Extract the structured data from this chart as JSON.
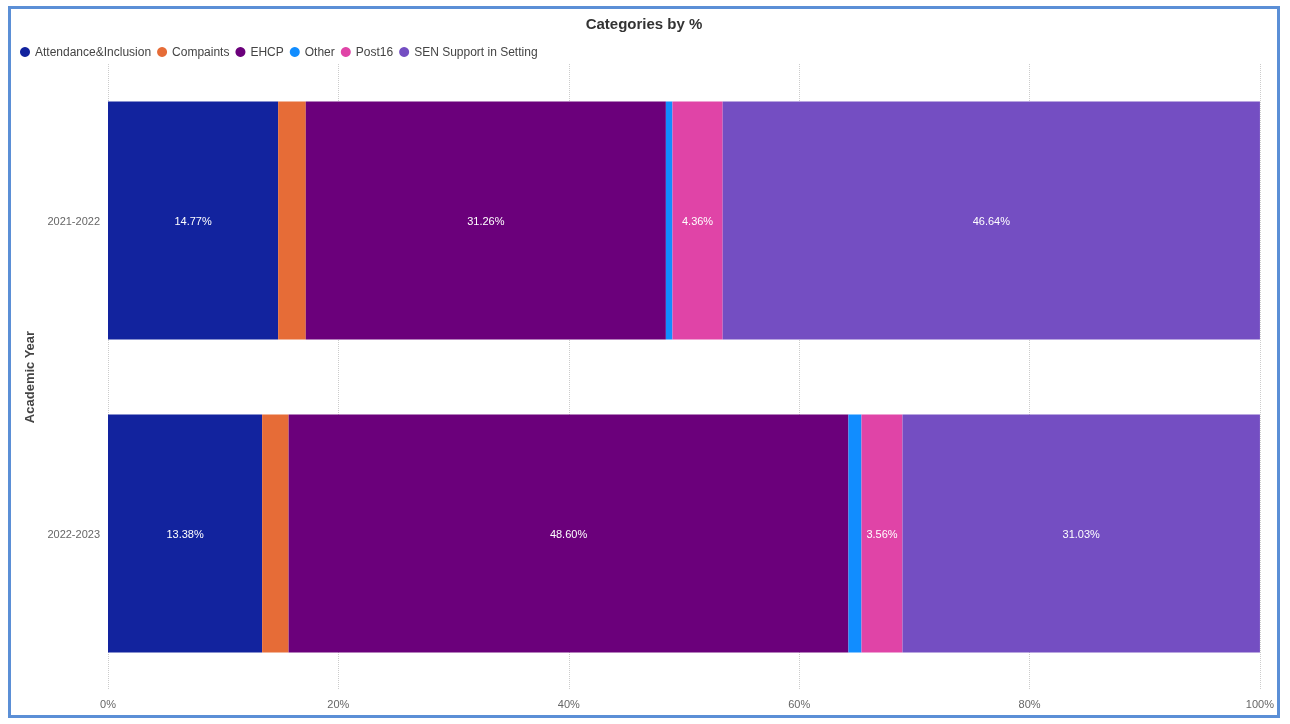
{
  "chart_data": {
    "type": "bar",
    "title": "Categories by %",
    "ylabel": "Academic Year",
    "orientation": "horizontal",
    "stacked": true,
    "categories": [
      "2021-2022",
      "2022-2023"
    ],
    "series": [
      {
        "name": "Attendance&Inclusion",
        "color": "#12239e",
        "values": [
          14.77,
          13.38
        ],
        "value_labels": [
          "14.77%",
          "13.38%"
        ]
      },
      {
        "name": "Compaints",
        "color": "#e66c37",
        "values": [
          2.4,
          2.3
        ],
        "value_labels": [
          null,
          null
        ]
      },
      {
        "name": "EHCP",
        "color": "#6b007b",
        "values": [
          31.26,
          48.6
        ],
        "value_labels": [
          "31.26%",
          "48.60%"
        ]
      },
      {
        "name": "Other",
        "color": "#118dff",
        "values": [
          0.57,
          1.13
        ],
        "value_labels": [
          null,
          null
        ]
      },
      {
        "name": "Post16",
        "color": "#e044a7",
        "values": [
          4.36,
          3.56
        ],
        "value_labels": [
          "4.36%",
          "3.56%"
        ]
      },
      {
        "name": "SEN Support in Setting",
        "color": "#744ec2",
        "values": [
          46.64,
          31.03
        ],
        "value_labels": [
          "46.64%",
          "31.03%"
        ]
      }
    ],
    "xlim": [
      0,
      100
    ],
    "xticks": [
      {
        "value": 0,
        "label": "0%"
      },
      {
        "value": 20,
        "label": "20%"
      },
      {
        "value": 40,
        "label": "40%"
      },
      {
        "value": 60,
        "label": "60%"
      },
      {
        "value": 80,
        "label": "80%"
      },
      {
        "value": 100,
        "label": "100%"
      }
    ],
    "grid": "x",
    "legend": "top left"
  }
}
